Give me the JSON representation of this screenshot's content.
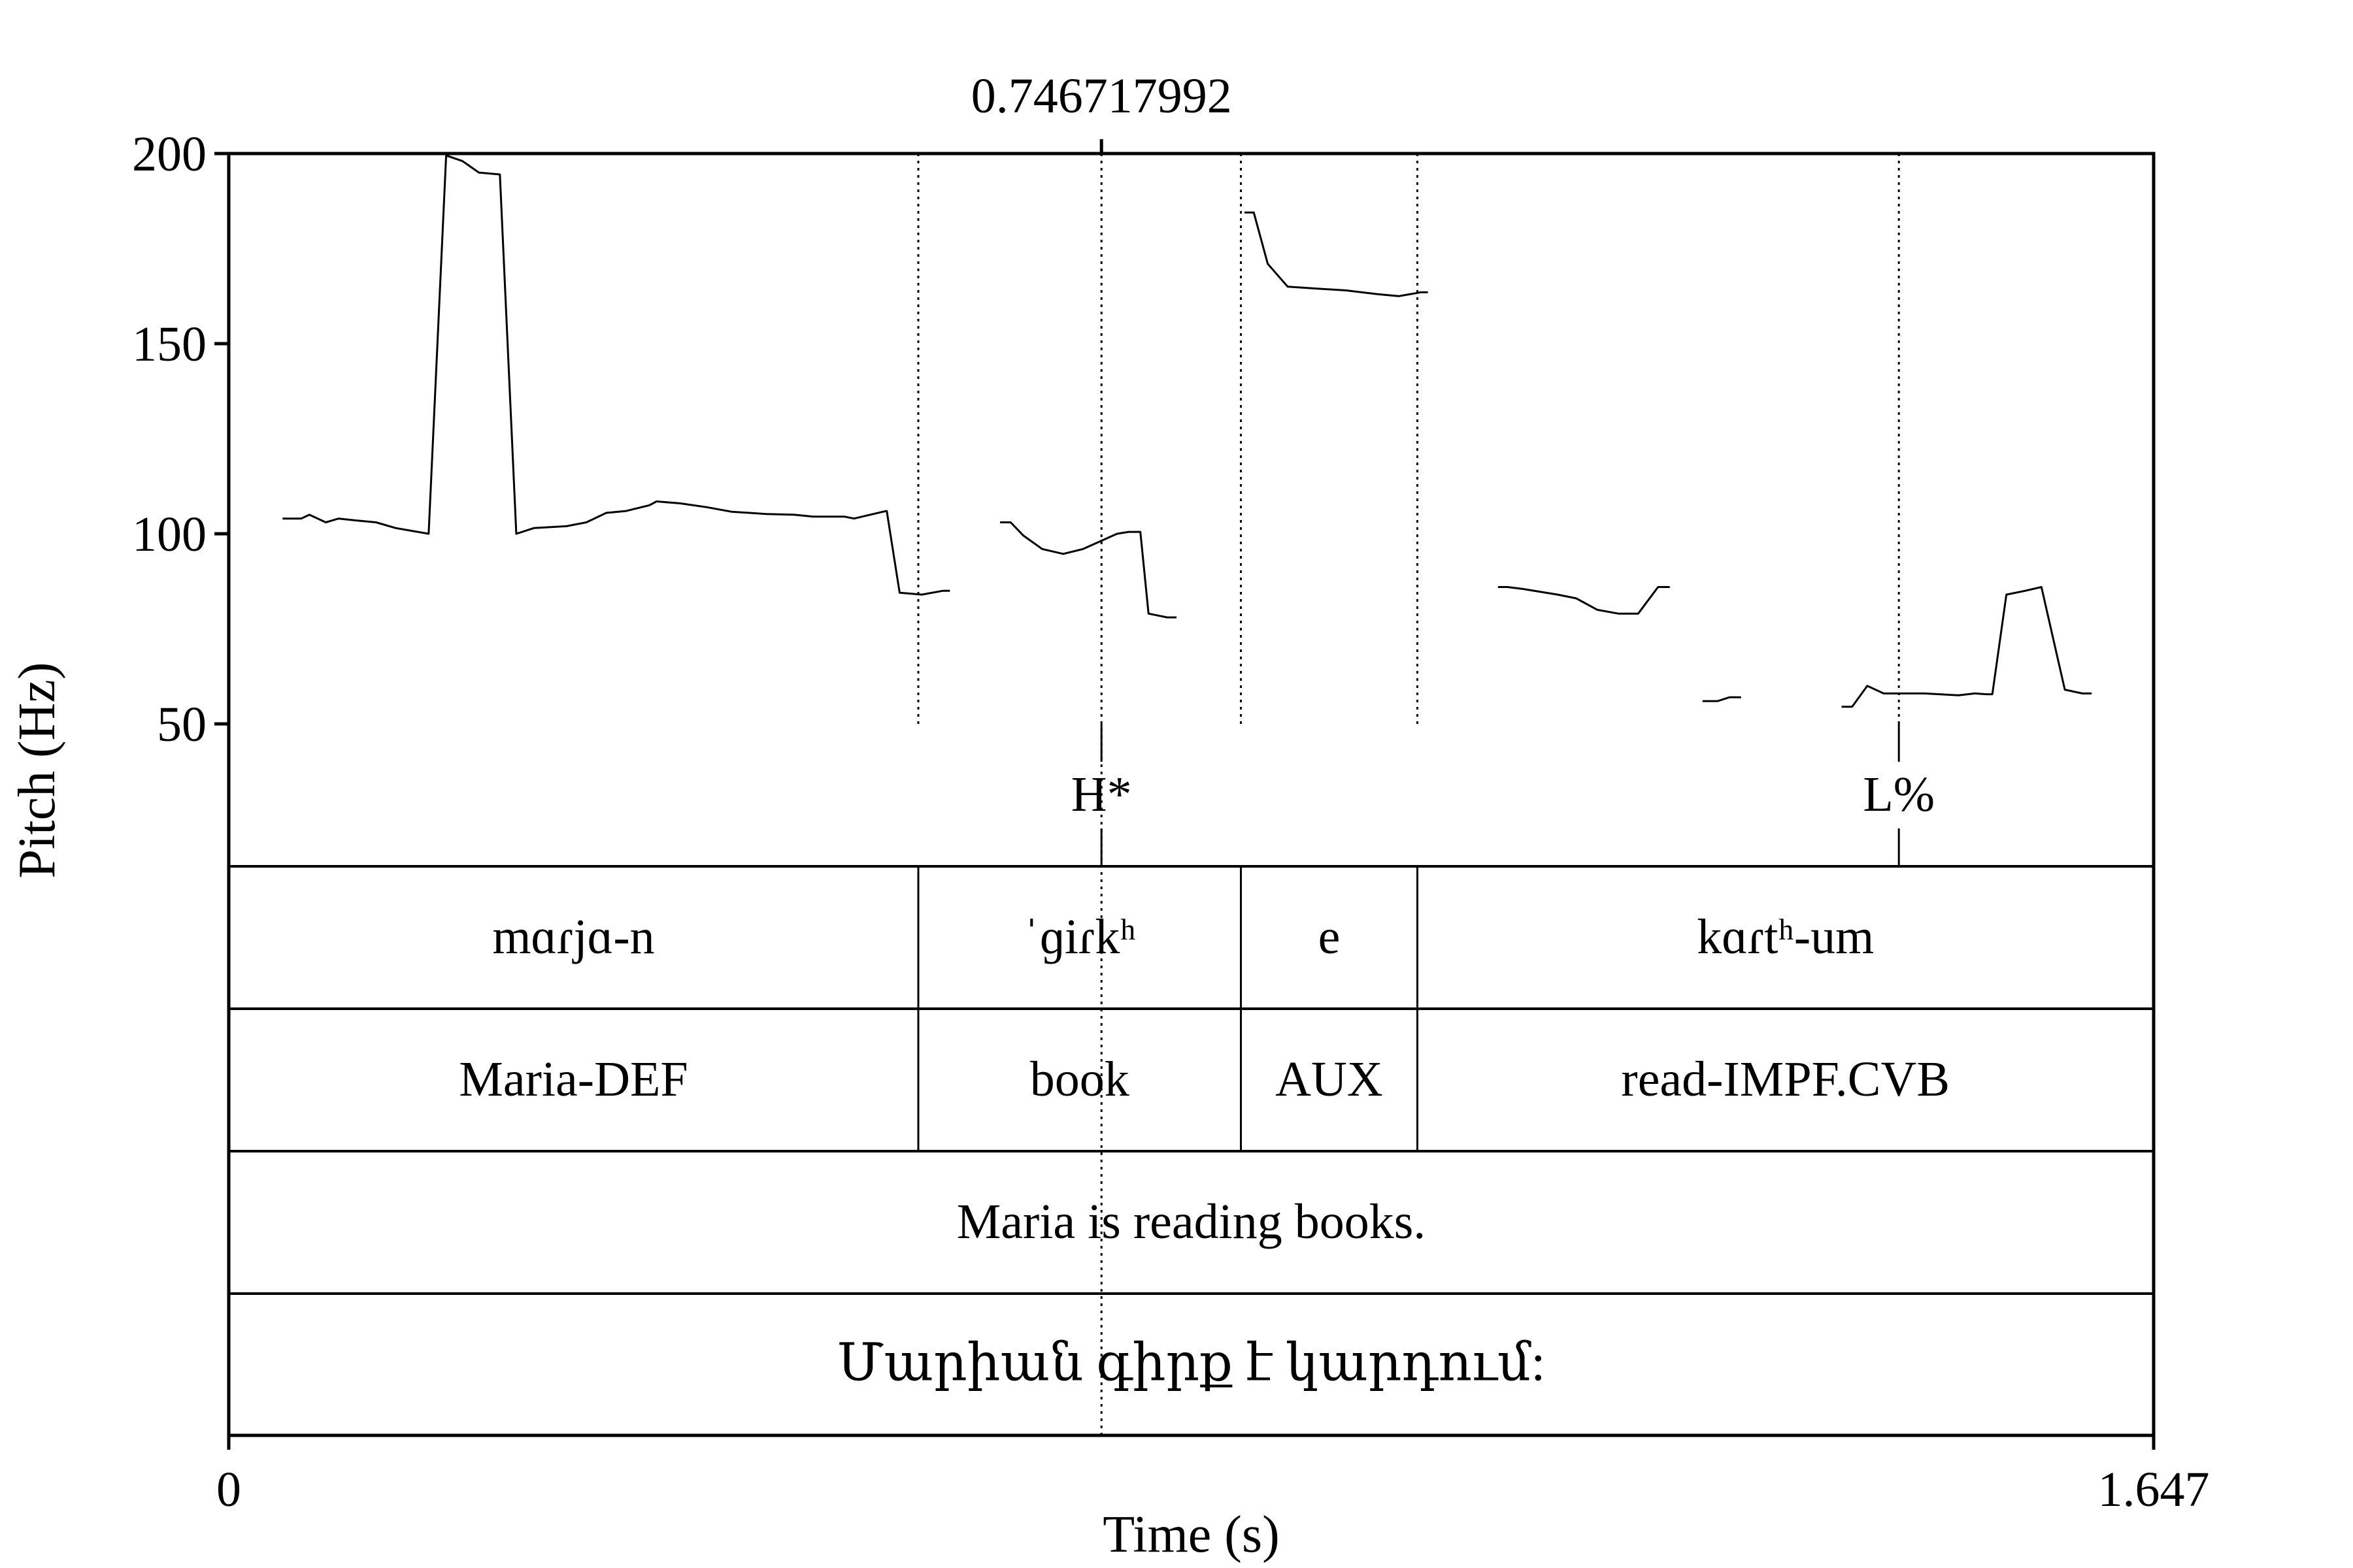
{
  "chart_data": {
    "type": "line",
    "xlabel": "Time (s)",
    "ylabel": "Pitch (Hz)",
    "xlim": [
      0,
      1.647
    ],
    "ylim": [
      50,
      200
    ],
    "x_tick_labels": [
      "0",
      "1.647"
    ],
    "y_ticks": [
      50,
      100,
      150,
      200
    ],
    "y_tick_labels": [
      "50",
      "100",
      "150",
      "200"
    ],
    "cursor": {
      "time": 0.746717992,
      "label": "0.746717992"
    },
    "pitch_segments": [
      {
        "points": [
          [
            0.046,
            104
          ],
          [
            0.062,
            104
          ],
          [
            0.069,
            105
          ],
          [
            0.083,
            103
          ],
          [
            0.094,
            104
          ],
          [
            0.109,
            103.5
          ],
          [
            0.126,
            103
          ],
          [
            0.143,
            101.5
          ],
          [
            0.171,
            100
          ],
          [
            0.186,
            199.5
          ],
          [
            0.2,
            198
          ],
          [
            0.214,
            195
          ],
          [
            0.232,
            194.5
          ],
          [
            0.246,
            100
          ],
          [
            0.261,
            101.5
          ],
          [
            0.289,
            102
          ],
          [
            0.306,
            103
          ],
          [
            0.323,
            105.5
          ],
          [
            0.34,
            106
          ],
          [
            0.36,
            107.5
          ],
          [
            0.366,
            108.5
          ],
          [
            0.386,
            108
          ],
          [
            0.409,
            107
          ],
          [
            0.43,
            105.8
          ],
          [
            0.46,
            105.2
          ],
          [
            0.484,
            105
          ],
          [
            0.5,
            104.5
          ],
          [
            0.527,
            104.5
          ],
          [
            0.535,
            104
          ],
          [
            0.56,
            105.8
          ],
          [
            0.563,
            106
          ],
          [
            0.574,
            84.5
          ],
          [
            0.593,
            84
          ],
          [
            0.611,
            85
          ],
          [
            0.617,
            85
          ]
        ]
      },
      {
        "points": [
          [
            0.66,
            103
          ],
          [
            0.669,
            103
          ],
          [
            0.68,
            99.5
          ],
          [
            0.696,
            96
          ],
          [
            0.714,
            94.7
          ],
          [
            0.731,
            96
          ],
          [
            0.76,
            100
          ],
          [
            0.77,
            100.5
          ],
          [
            0.78,
            100.5
          ],
          [
            0.787,
            79
          ],
          [
            0.803,
            78
          ],
          [
            0.811,
            78
          ]
        ]
      },
      {
        "points": [
          [
            0.869,
            184.5
          ],
          [
            0.877,
            184.5
          ],
          [
            0.889,
            171
          ],
          [
            0.906,
            165
          ],
          [
            0.93,
            164.5
          ],
          [
            0.956,
            164
          ],
          [
            0.983,
            163
          ],
          [
            1.001,
            162.5
          ],
          [
            1.02,
            163.5
          ],
          [
            1.026,
            163.5
          ]
        ]
      },
      {
        "points": [
          [
            1.086,
            86
          ],
          [
            1.094,
            86
          ],
          [
            1.107,
            85.5
          ],
          [
            1.137,
            84
          ],
          [
            1.153,
            83
          ],
          [
            1.171,
            80
          ],
          [
            1.189,
            79
          ],
          [
            1.206,
            79
          ],
          [
            1.223,
            86
          ],
          [
            1.233,
            86
          ]
        ]
      },
      {
        "points": [
          [
            1.261,
            56
          ],
          [
            1.274,
            56
          ],
          [
            1.284,
            57
          ],
          [
            1.294,
            57
          ]
        ]
      },
      {
        "points": [
          [
            1.38,
            54.5
          ],
          [
            1.389,
            54.5
          ],
          [
            1.402,
            60
          ],
          [
            1.416,
            58
          ],
          [
            1.434,
            58
          ],
          [
            1.451,
            58
          ],
          [
            1.48,
            57.5
          ],
          [
            1.494,
            58
          ],
          [
            1.504,
            57.8
          ],
          [
            1.509,
            57.8
          ],
          [
            1.521,
            84
          ],
          [
            1.537,
            85
          ],
          [
            1.551,
            86
          ],
          [
            1.571,
            59
          ],
          [
            1.586,
            58
          ],
          [
            1.594,
            58
          ]
        ]
      }
    ],
    "tiers": [
      {
        "name": "tones",
        "type": "point",
        "points": [
          {
            "time": 0.746717992,
            "label": "H*"
          },
          {
            "time": 1.429,
            "label": "L%"
          }
        ]
      },
      {
        "name": "transcription",
        "type": "interval",
        "intervals": [
          {
            "start": 0,
            "end": 0.59,
            "label": "mɑɾjɑ-n"
          },
          {
            "start": 0.59,
            "end": 0.866,
            "label": "ˈɡiɾkʰ"
          },
          {
            "start": 0.866,
            "end": 1.017,
            "label": "e"
          },
          {
            "start": 1.017,
            "end": 1.647,
            "label": "kɑɾtʰ-um"
          }
        ]
      },
      {
        "name": "gloss",
        "type": "interval",
        "intervals": [
          {
            "start": 0,
            "end": 0.59,
            "label": "Maria-DEF"
          },
          {
            "start": 0.59,
            "end": 0.866,
            "label": "book"
          },
          {
            "start": 0.866,
            "end": 1.017,
            "label": "AUX"
          },
          {
            "start": 1.017,
            "end": 1.647,
            "label": "read-IMPF.CVB"
          }
        ]
      },
      {
        "name": "translation",
        "type": "interval",
        "intervals": [
          {
            "start": 0,
            "end": 1.647,
            "label": "Maria is reading books."
          }
        ]
      },
      {
        "name": "orthography",
        "type": "interval",
        "intervals": [
          {
            "start": 0,
            "end": 1.647,
            "label": "Մարիան գիրք է կարդում:"
          }
        ]
      }
    ],
    "dotted_guides": [
      0.59,
      0.866,
      1.017,
      1.429
    ]
  }
}
